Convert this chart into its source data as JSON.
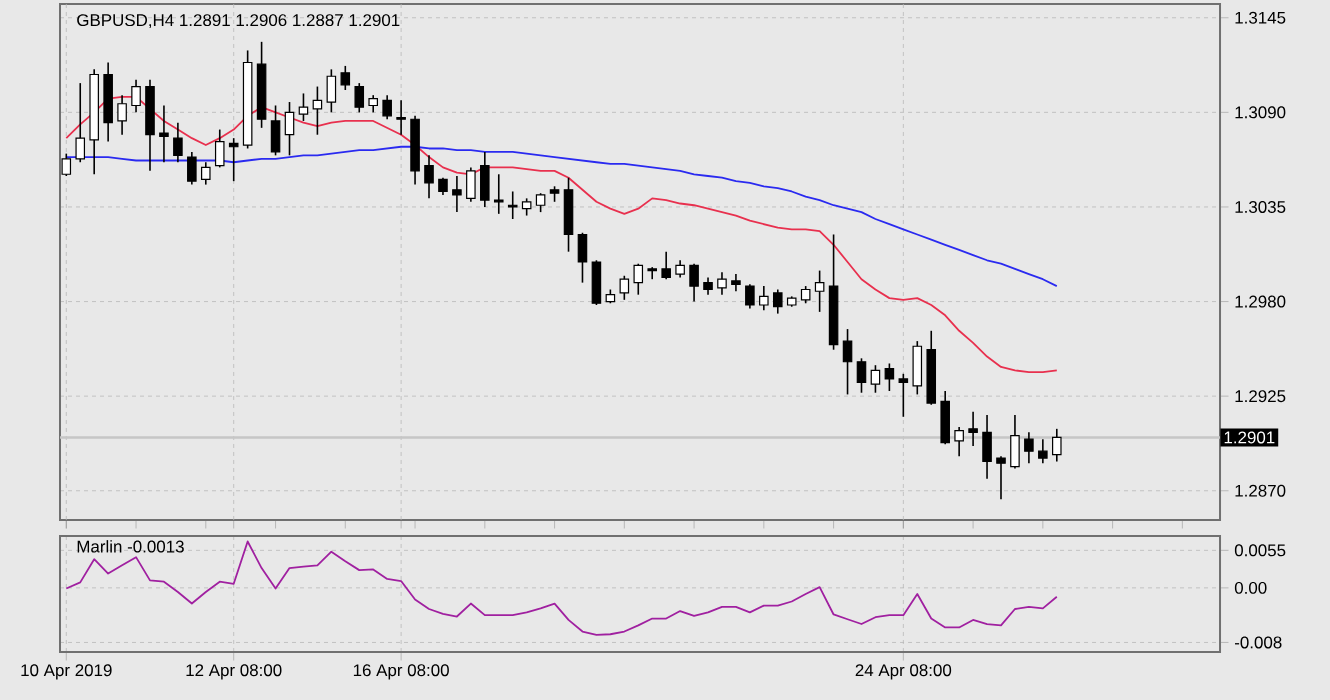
{
  "chart_data": [
    {
      "type": "candlestick",
      "title": "GBPUSD,H4  1.2891 1.2906 1.2887 1.2901",
      "categories": [
        null,
        null,
        null,
        null,
        null,
        null,
        null,
        null,
        null,
        null,
        null,
        null,
        null,
        null,
        null,
        null,
        null,
        null,
        null,
        null,
        null,
        null,
        null,
        null,
        null,
        null,
        null,
        null,
        null,
        null,
        null,
        null,
        null,
        null,
        null,
        null,
        null,
        null,
        null,
        null,
        null,
        null,
        null,
        null,
        null,
        null,
        null,
        null,
        null,
        null,
        null,
        null,
        null,
        null,
        null,
        null,
        null,
        null,
        null,
        null,
        null,
        null,
        null,
        null,
        null,
        null,
        null,
        null,
        null,
        null,
        null,
        null
      ],
      "ohlc": [
        [
          1.3054,
          1.3066,
          1.3053,
          1.3063
        ],
        [
          1.3063,
          1.3107,
          1.3061,
          1.3075
        ],
        [
          1.3074,
          1.3115,
          1.3054,
          1.3112
        ],
        [
          1.3112,
          1.3119,
          1.3073,
          1.3084
        ],
        [
          1.3085,
          1.31,
          1.3077,
          1.3095
        ],
        [
          1.3094,
          1.3109,
          1.309,
          1.3105
        ],
        [
          1.3105,
          1.3109,
          1.3056,
          1.3077
        ],
        [
          1.3078,
          1.3094,
          1.3061,
          1.3076
        ],
        [
          1.3075,
          1.3084,
          1.3061,
          1.3065
        ],
        [
          1.3064,
          1.3067,
          1.3048,
          1.305
        ],
        [
          1.3051,
          1.3061,
          1.3048,
          1.3058
        ],
        [
          1.3059,
          1.308,
          1.3058,
          1.3073
        ],
        [
          1.3072,
          1.3075,
          1.305,
          1.307
        ],
        [
          1.3071,
          1.3126,
          1.3069,
          1.3119
        ],
        [
          1.3118,
          1.3131,
          1.3081,
          1.3086
        ],
        [
          1.3085,
          1.3094,
          1.3065,
          1.3067
        ],
        [
          1.3077,
          1.3096,
          1.3065,
          1.309
        ],
        [
          1.3089,
          1.3101,
          1.3085,
          1.3093
        ],
        [
          1.3092,
          1.3105,
          1.3077,
          1.3097
        ],
        [
          1.3096,
          1.3115,
          1.309,
          1.3111
        ],
        [
          1.3113,
          1.3117,
          1.3103,
          1.3106
        ],
        [
          1.3105,
          1.3107,
          1.309,
          1.3093
        ],
        [
          1.3094,
          1.31,
          1.309,
          1.3098
        ],
        [
          1.3097,
          1.31,
          1.3086,
          1.3088
        ],
        [
          1.3087,
          1.3097,
          1.3077,
          1.3086
        ],
        [
          1.3086,
          1.3088,
          1.3048,
          1.3056
        ],
        [
          1.3059,
          1.3065,
          1.304,
          1.3049
        ],
        [
          1.3051,
          1.3052,
          1.3042,
          1.3044
        ],
        [
          1.3045,
          1.3053,
          1.3032,
          1.3042
        ],
        [
          1.304,
          1.3058,
          1.3038,
          1.3056
        ],
        [
          1.3059,
          1.3067,
          1.3035,
          1.3039
        ],
        [
          1.3039,
          1.3054,
          1.3031,
          1.3038
        ],
        [
          1.3036,
          1.3044,
          1.3028,
          1.3035
        ],
        [
          1.3034,
          1.304,
          1.303,
          1.3038
        ],
        [
          1.3036,
          1.3043,
          1.3032,
          1.3042
        ],
        [
          1.3045,
          1.3047,
          1.3038,
          1.3043
        ],
        [
          1.3045,
          1.3052,
          1.3009,
          1.3019
        ],
        [
          1.3019,
          1.302,
          1.2991,
          1.3003
        ],
        [
          1.3003,
          1.3004,
          1.2978,
          1.2979
        ],
        [
          1.298,
          1.2987,
          1.2979,
          1.2984
        ],
        [
          1.2985,
          1.2995,
          1.2981,
          1.2993
        ],
        [
          1.2991,
          1.3002,
          1.2984,
          1.3001
        ],
        [
          1.2999,
          1.3,
          1.2993,
          1.2998
        ],
        [
          1.2999,
          1.3009,
          1.2993,
          1.2994
        ],
        [
          1.2996,
          1.3004,
          1.2994,
          1.3001
        ],
        [
          1.3001,
          1.3002,
          1.298,
          1.2989
        ],
        [
          1.2991,
          1.2994,
          1.2984,
          1.2987
        ],
        [
          1.2988,
          1.2997,
          1.2984,
          1.2993
        ],
        [
          1.2992,
          1.2996,
          1.2986,
          1.299
        ],
        [
          1.2989,
          1.299,
          1.2976,
          1.2978
        ],
        [
          1.2978,
          1.2989,
          1.2975,
          1.2983
        ],
        [
          1.2985,
          1.2987,
          1.2973,
          1.2977
        ],
        [
          1.2978,
          1.2983,
          1.2977,
          1.2982
        ],
        [
          1.2981,
          1.2989,
          1.2979,
          1.2987
        ],
        [
          1.2986,
          1.2998,
          1.2974,
          1.2991
        ],
        [
          1.2989,
          1.3019,
          1.2952,
          1.2955
        ],
        [
          1.2957,
          1.2964,
          1.2926,
          1.2945
        ],
        [
          1.2945,
          1.2947,
          1.2927,
          1.2933
        ],
        [
          1.2932,
          1.2943,
          1.2927,
          1.294
        ],
        [
          1.2941,
          1.2944,
          1.2928,
          1.2935
        ],
        [
          1.2935,
          1.2938,
          1.2913,
          1.2933
        ],
        [
          1.2931,
          1.2957,
          1.2926,
          1.2954
        ],
        [
          1.2952,
          1.2963,
          1.292,
          1.2921
        ],
        [
          1.2922,
          1.2928,
          1.2897,
          1.2898
        ],
        [
          1.2899,
          1.2907,
          1.289,
          1.2905
        ],
        [
          1.2906,
          1.2916,
          1.2896,
          1.2904
        ],
        [
          1.2904,
          1.2914,
          1.2877,
          1.2887
        ],
        [
          1.2889,
          1.289,
          1.2865,
          1.2886
        ],
        [
          1.2884,
          1.2914,
          1.2883,
          1.2902
        ],
        [
          1.29,
          1.2904,
          1.2886,
          1.2893
        ],
        [
          1.2893,
          1.29,
          1.2886,
          1.2889
        ],
        [
          1.2891,
          1.2906,
          1.2887,
          1.2901
        ]
      ],
      "series": [
        {
          "type": "line",
          "color": "#e8304e",
          "values": [
            1.3075,
            1.3083,
            1.309,
            1.3098,
            1.3099,
            1.3099,
            1.3092,
            1.3085,
            1.308,
            1.3075,
            1.3071,
            1.3075,
            1.308,
            1.3088,
            1.3093,
            1.309,
            1.3087,
            1.3084,
            1.3082,
            1.3084,
            1.3085,
            1.3085,
            1.3085,
            1.3081,
            1.3077,
            1.3071,
            1.3064,
            1.3058,
            1.3055,
            1.3054,
            1.3058,
            1.3058,
            1.3058,
            1.3057,
            1.3056,
            1.3056,
            1.3052,
            1.3045,
            1.3038,
            1.3034,
            1.3031,
            1.3034,
            1.304,
            1.3039,
            1.3037,
            1.3036,
            1.3034,
            1.3032,
            1.303,
            1.3027,
            1.3025,
            1.3023,
            1.3022,
            1.3022,
            1.3021,
            1.3013,
            1.3003,
            1.2993,
            1.2987,
            1.2982,
            1.2981,
            1.2982,
            1.2978,
            1.2972,
            1.2963,
            1.2956,
            1.2948,
            1.2942,
            1.294,
            1.2939,
            1.2939,
            1.294
          ]
        },
        {
          "type": "line",
          "color": "#2a2af0",
          "values": [
            1.3064,
            1.3064,
            1.3064,
            1.3064,
            1.3063,
            1.3062,
            1.3062,
            1.3062,
            1.3062,
            1.3062,
            1.3062,
            1.3062,
            1.3061,
            1.3062,
            1.3063,
            1.3063,
            1.3064,
            1.3065,
            1.3065,
            1.3066,
            1.3067,
            1.3068,
            1.3068,
            1.3069,
            1.307,
            1.307,
            1.3069,
            1.3069,
            1.3068,
            1.3068,
            1.3067,
            1.3067,
            1.3067,
            1.3066,
            1.3065,
            1.3064,
            1.3063,
            1.3062,
            1.3061,
            1.306,
            1.306,
            1.3059,
            1.3058,
            1.3057,
            1.3056,
            1.3054,
            1.3053,
            1.3052,
            1.305,
            1.3049,
            1.3047,
            1.3046,
            1.3044,
            1.3041,
            1.3039,
            1.3036,
            1.3034,
            1.3032,
            1.3028,
            1.3025,
            1.3022,
            1.3019,
            1.3016,
            1.3013,
            1.301,
            1.3007,
            1.3004,
            1.3002,
            1.2999,
            1.2996,
            1.2993,
            1.2989
          ]
        }
      ],
      "ylim": [
        1.2853,
        1.3153
      ],
      "yticks": [
        {
          "value": 1.287,
          "label": "1.2870"
        },
        1.2925,
        {
          "value": 1.298,
          "label": "1.2980"
        },
        1.3035,
        {
          "value": 1.309,
          "label": "1.3090"
        },
        1.3145
      ],
      "ref_lines": [
        {
          "axis": "y",
          "value": 1.2901,
          "label": "1.2901"
        }
      ],
      "grid": true,
      "tick_labels": "y"
    },
    {
      "type": "line",
      "title": "Marlin -0.0013",
      "color": "#a020a0",
      "categories": [
        "10 Apr 2019",
        null,
        null,
        null,
        null,
        null,
        null,
        null,
        null,
        null,
        null,
        null,
        "12 Apr 08:00",
        null,
        null,
        null,
        null,
        null,
        null,
        null,
        null,
        null,
        null,
        null,
        "16 Apr 08:00",
        null,
        null,
        null,
        null,
        null,
        null,
        null,
        null,
        null,
        null,
        null,
        null,
        null,
        null,
        null,
        null,
        null,
        null,
        null,
        null,
        null,
        null,
        null,
        null,
        null,
        null,
        null,
        null,
        null,
        null,
        null,
        null,
        null,
        null,
        null,
        "24 Apr 08:00",
        null,
        null,
        null,
        null,
        null,
        null,
        null,
        null,
        null,
        null,
        null
      ],
      "values": [
        -0.0001,
        0.0008,
        0.0042,
        0.0021,
        0.0033,
        0.0045,
        0.0011,
        0.0009,
        -0.0006,
        -0.0023,
        -0.0006,
        0.0009,
        0.0006,
        0.0068,
        0.0029,
        -0.0001,
        0.0029,
        0.0031,
        0.0033,
        0.0053,
        0.0039,
        0.0026,
        0.0027,
        0.0013,
        0.001,
        -0.0017,
        -0.0031,
        -0.0038,
        -0.0042,
        -0.0023,
        -0.004,
        -0.004,
        -0.004,
        -0.0036,
        -0.003,
        -0.0023,
        -0.0047,
        -0.0064,
        -0.0069,
        -0.0068,
        -0.0064,
        -0.0055,
        -0.0045,
        -0.0045,
        -0.0034,
        -0.0041,
        -0.0036,
        -0.0028,
        -0.0028,
        -0.0036,
        -0.0026,
        -0.0026,
        -0.002,
        -0.0009,
        0.0001,
        -0.0039,
        -0.0046,
        -0.0053,
        -0.0043,
        -0.004,
        -0.004,
        -0.0009,
        -0.0045,
        -0.0058,
        -0.0058,
        -0.0047,
        -0.0053,
        -0.0055,
        -0.0031,
        -0.0028,
        -0.003,
        -0.0013
      ],
      "ylim": [
        -0.0094,
        0.0076
      ],
      "yticks": [
        -0.008,
        {
          "value": 0,
          "label": "0.00"
        },
        0.0055
      ],
      "grid": true
    }
  ]
}
